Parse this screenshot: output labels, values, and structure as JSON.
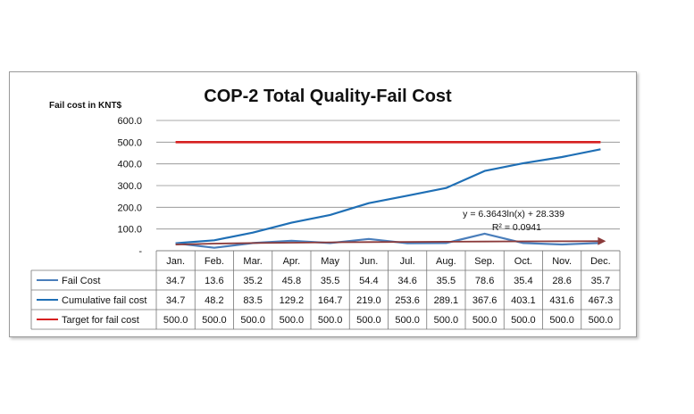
{
  "chart_data": {
    "type": "line",
    "title": "COP-2 Total Quality-Fail Cost",
    "ylabel": "Fail cost  in KNT$",
    "ylim": [
      0,
      600
    ],
    "yticks": [
      "600.0",
      "500.0",
      "400.0",
      "300.0",
      "200.0",
      "100.0",
      "-"
    ],
    "categories": [
      "Jan.",
      "Feb.",
      "Mar.",
      "Apr.",
      "May",
      "Jun.",
      "Jul.",
      "Aug.",
      "Sep.",
      "Oct.",
      "Nov.",
      "Dec."
    ],
    "series": [
      {
        "name": "Fail Cost",
        "color": "#4a7ebb",
        "values": [
          34.7,
          13.6,
          35.2,
          45.8,
          35.5,
          54.4,
          34.6,
          35.5,
          78.6,
          35.4,
          28.6,
          35.7
        ],
        "value_labels": [
          "34.7",
          "13.6",
          "35.2",
          "45.8",
          "35.5",
          "54.4",
          "34.6",
          "35.5",
          "78.6",
          "35.4",
          "28.6",
          "35.7"
        ]
      },
      {
        "name": "Cumulative fail cost",
        "color": "#1f6fb5",
        "values": [
          34.7,
          48.2,
          83.5,
          129.2,
          164.7,
          219.0,
          253.6,
          289.1,
          367.6,
          403.1,
          431.6,
          467.3
        ],
        "value_labels": [
          "34.7",
          "48.2",
          "83.5",
          "129.2",
          "164.7",
          "219.0",
          "253.6",
          "289.1",
          "367.6",
          "403.1",
          "431.6",
          "467.3"
        ]
      },
      {
        "name": "Target for fail cost",
        "color": "#d62020",
        "values": [
          500,
          500,
          500,
          500,
          500,
          500,
          500,
          500,
          500,
          500,
          500,
          500
        ],
        "value_labels": [
          "500.0",
          "500.0",
          "500.0",
          "500.0",
          "500.0",
          "500.0",
          "500.0",
          "500.0",
          "500.0",
          "500.0",
          "500.0",
          "500.0"
        ]
      }
    ],
    "trendline": {
      "type": "logarithmic",
      "of_series": "Fail Cost",
      "a": 6.3643,
      "b": 28.339,
      "color": "#8b3a3a",
      "equation": "y = 6.3643ln(x) + 28.339",
      "r_squared": "R² = 0.0941"
    },
    "grid": true,
    "legend": "data-table"
  }
}
